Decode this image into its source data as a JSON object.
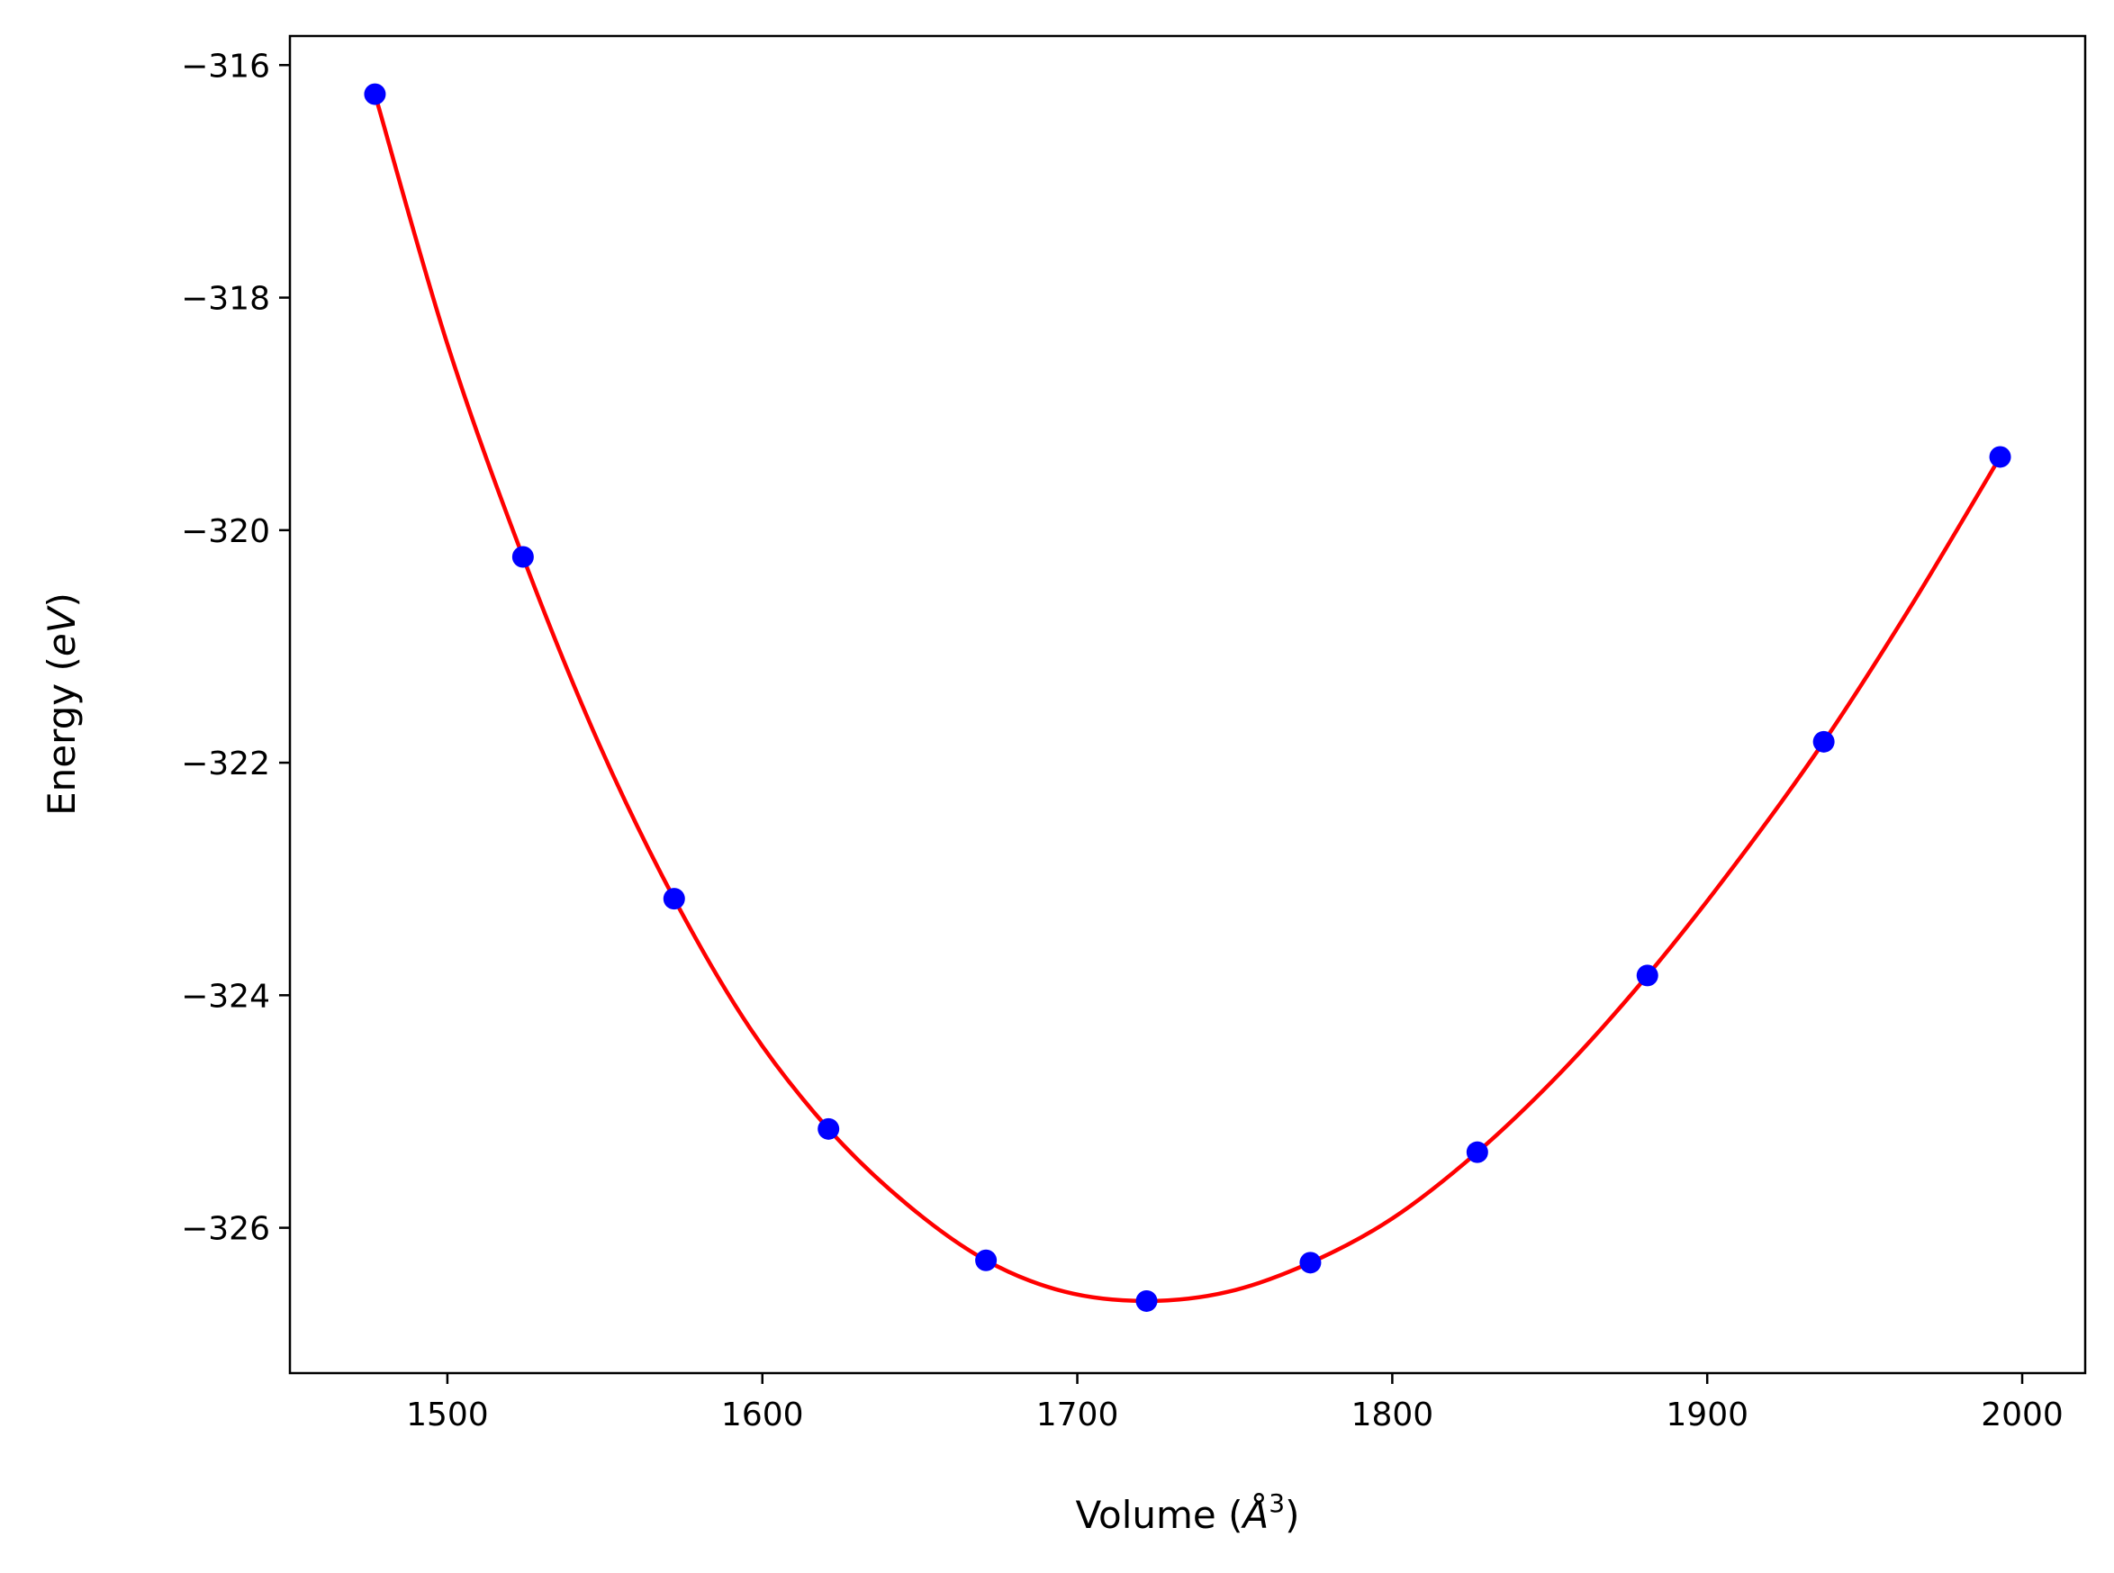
{
  "chart_data": {
    "type": "scatter",
    "title": "",
    "xlabel": "Volume",
    "xlabel_unit": "Å",
    "xlabel_unit_power": "3",
    "ylabel": "Energy",
    "ylabel_unit": "eV",
    "xlim": [
      1450,
      2020
    ],
    "ylim": [
      -327.25,
      -315.75
    ],
    "xticks": [
      1500,
      1600,
      1700,
      1800,
      1900,
      2000
    ],
    "yticks": [
      -326,
      -324,
      -322,
      -320,
      -318,
      -316
    ],
    "ytick_labels": [
      "−326",
      "−324",
      "−322",
      "−320",
      "−318",
      "−316"
    ],
    "grid": false,
    "legend": "none",
    "series": [
      {
        "kind": "points",
        "color": "#0000ff",
        "x": [
          1477,
          1524,
          1572,
          1621,
          1671,
          1722,
          1774,
          1827,
          1881,
          1937,
          1993
        ],
        "y": [
          -316.25,
          -320.23,
          -323.17,
          -325.15,
          -326.28,
          -326.63,
          -326.3,
          -325.35,
          -323.83,
          -321.82,
          -319.37
        ]
      },
      {
        "kind": "fit",
        "color": "#ff0000",
        "x": [
          1477,
          1500,
          1524,
          1548,
          1572,
          1596,
          1621,
          1646,
          1671,
          1696,
          1722,
          1748,
          1774,
          1800,
          1827,
          1854,
          1881,
          1909,
          1937,
          1965,
          1993
        ],
        "y": [
          -316.25,
          -318.4,
          -320.23,
          -321.83,
          -323.17,
          -324.28,
          -325.15,
          -325.8,
          -326.28,
          -326.55,
          -326.63,
          -326.55,
          -326.3,
          -325.92,
          -325.35,
          -324.65,
          -323.83,
          -322.87,
          -321.82,
          -320.64,
          -319.37
        ]
      }
    ]
  }
}
